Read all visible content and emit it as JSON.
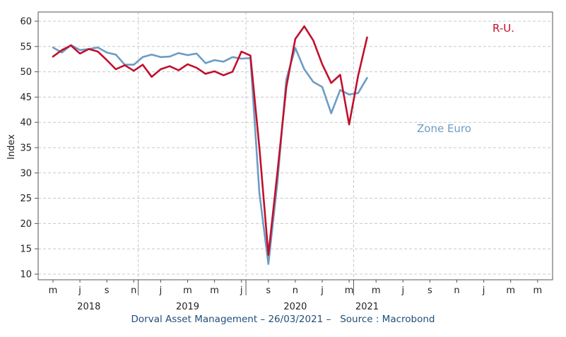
{
  "chart_data": {
    "type": "line",
    "ylabel": "Index",
    "ylim": [
      10,
      60
    ],
    "yticks": [
      10,
      15,
      20,
      25,
      30,
      35,
      40,
      45,
      50,
      55,
      60
    ],
    "grid": true,
    "x": [
      "2018-03",
      "2018-04",
      "2018-05",
      "2018-06",
      "2018-07",
      "2018-08",
      "2018-09",
      "2018-10",
      "2018-11",
      "2018-12",
      "2019-01",
      "2019-02",
      "2019-03",
      "2019-04",
      "2019-05",
      "2019-06",
      "2019-07",
      "2019-08",
      "2019-09",
      "2019-10",
      "2019-11",
      "2019-12",
      "2020-01",
      "2020-02",
      "2020-03",
      "2020-04",
      "2020-05",
      "2020-06",
      "2020-07",
      "2020-08",
      "2020-09",
      "2020-10",
      "2020-11",
      "2020-12",
      "2021-01",
      "2021-02",
      "2021-03"
    ],
    "xticks": [
      {
        "label": "m",
        "month": "2018-03"
      },
      {
        "label": "j",
        "month": "2018-06"
      },
      {
        "label": "s",
        "month": "2018-09"
      },
      {
        "label": "n",
        "month": "2018-12"
      },
      {
        "label": "j",
        "month": "2019-03"
      },
      {
        "label": "m",
        "month": "2019-06"
      },
      {
        "label": "m",
        "month": "2019-09"
      },
      {
        "label": "j",
        "month": "2019-12"
      },
      {
        "label": "s",
        "month": "2020-03"
      },
      {
        "label": "n",
        "month": "2020-06"
      },
      {
        "label": "j",
        "month": "2020-09"
      },
      {
        "label": "m",
        "month": "2020-12"
      },
      {
        "label": "m",
        "month": "2021-03"
      },
      {
        "label": "j",
        "month": "2021-06"
      },
      {
        "label": "s",
        "month": "2021-09"
      },
      {
        "label": "n",
        "month": "2021-12"
      },
      {
        "label": "j",
        "month": "2022-03"
      },
      {
        "label": "m",
        "month": "2022-06"
      },
      {
        "label": "m",
        "month": "2022-09"
      }
    ],
    "years": [
      {
        "label": "2018",
        "month": "2018-07"
      },
      {
        "label": "2019",
        "month": "2019-06"
      },
      {
        "label": "2020",
        "month": "2020-06"
      },
      {
        "label": "2021",
        "month": "2021-02"
      }
    ],
    "series": [
      {
        "name": "R-U.",
        "color": "#c0102c",
        "values": [
          53.0,
          54.3,
          55.2,
          53.6,
          54.5,
          54.0,
          52.3,
          50.5,
          51.3,
          50.2,
          51.4,
          49.0,
          50.5,
          51.1,
          50.3,
          51.5,
          50.8,
          49.6,
          50.1,
          49.3,
          50.0,
          54.0,
          53.2,
          35.0,
          13.8,
          30.0,
          47.0,
          56.5,
          59.0,
          56.2,
          51.5,
          47.8,
          49.4,
          39.6,
          49.2,
          56.8,
          null
        ]
      },
      {
        "name": "Zone Euro",
        "color": "#6c9cc4",
        "values": [
          54.8,
          53.8,
          55.3,
          54.3,
          54.5,
          54.8,
          53.8,
          53.4,
          51.4,
          51.4,
          52.9,
          53.4,
          52.9,
          53.0,
          53.7,
          53.3,
          53.6,
          51.7,
          52.3,
          52.0,
          52.9,
          52.6,
          52.7,
          26.0,
          12.0,
          28.0,
          48.5,
          54.7,
          50.5,
          48.0,
          47.0,
          41.8,
          46.4,
          45.5,
          45.8,
          48.8,
          null
        ]
      }
    ]
  },
  "footer": {
    "text": "Dorval Asset Management – 26/03/2021 –   Source : Macrobond"
  }
}
